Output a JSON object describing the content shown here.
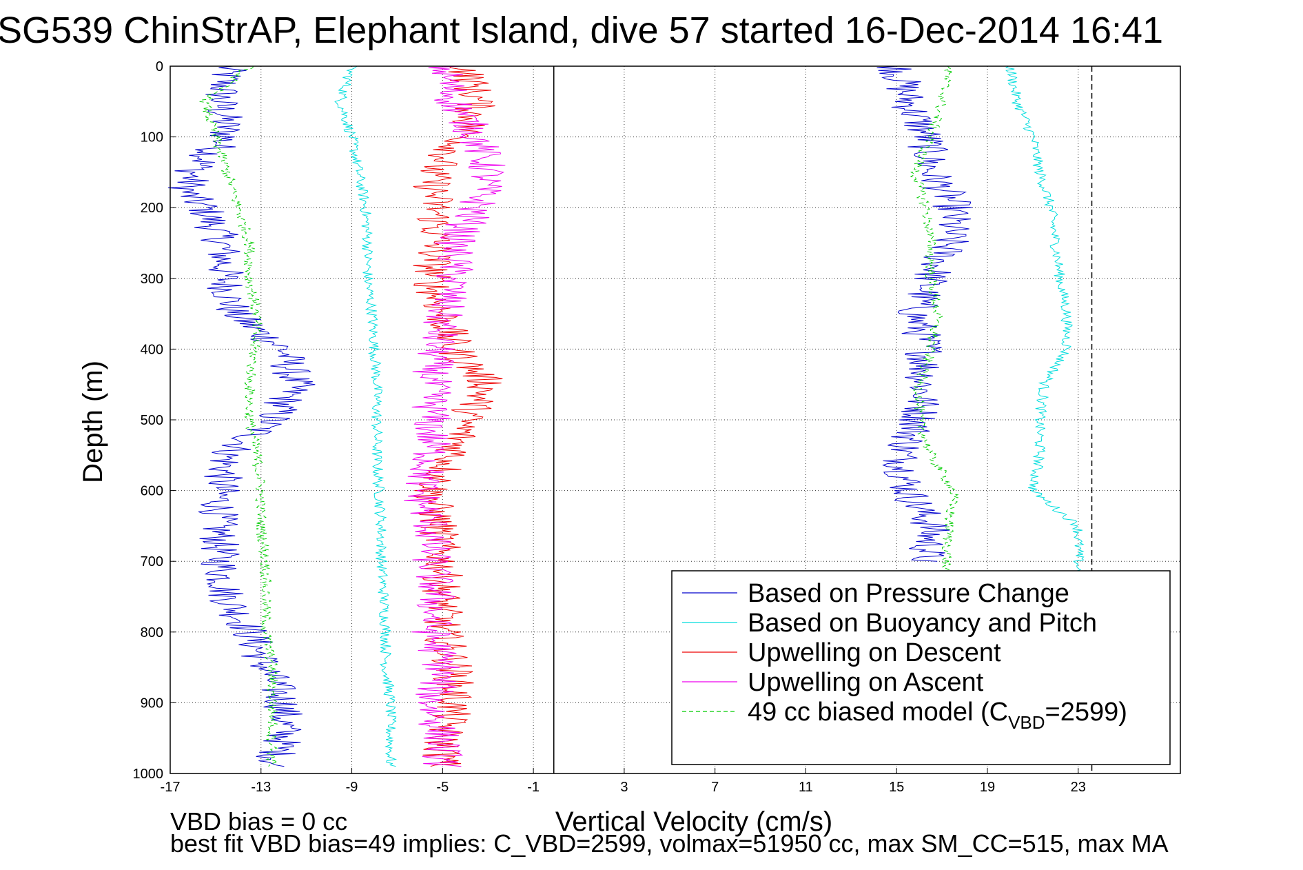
{
  "chart_data": {
    "type": "line",
    "title": "SG539 ChinStrAP, Elephant Island, dive 57 started 16-Dec-2014 16:41",
    "xlabel": "Vertical Velocity (cm/s)",
    "ylabel": "Depth (m)",
    "xlim": [
      -17,
      27.5
    ],
    "ylim": [
      1000,
      0
    ],
    "y_reversed": true,
    "grid": true,
    "legend_position": "lower-right",
    "x_ticks": [
      "-17",
      "-13",
      "-9",
      "-5",
      "-1",
      "3",
      "7",
      "11",
      "15",
      "19",
      "23"
    ],
    "y_ticks": [
      "0",
      "100",
      "200",
      "300",
      "400",
      "500",
      "600",
      "700",
      "800",
      "900",
      "1000"
    ],
    "reference_lines": [
      {
        "x": -0.1,
        "style": "solid",
        "color": "#000000"
      },
      {
        "x": 23.6,
        "style": "dashed",
        "color": "#000000"
      }
    ],
    "series": [
      {
        "name": "Based on Pressure Change",
        "color": "#0000cc",
        "style": "solid",
        "depth": [
          0,
          50,
          100,
          150,
          180,
          200,
          250,
          300,
          350,
          400,
          450,
          500,
          550,
          600,
          650,
          700,
          750,
          800,
          850,
          900,
          950,
          990
        ],
        "descent": [
          -14.5,
          -14.8,
          -14.5,
          -16,
          -16.3,
          -15.5,
          -14.7,
          -14.6,
          -14.2,
          -12,
          -11.5,
          -12.5,
          -14.5,
          -14.8,
          -14.9,
          -14.8,
          -14.5,
          -13.5,
          -12.8,
          -12,
          -12,
          -12.5
        ],
        "ascent": [
          15,
          15.5,
          16.3,
          16.5,
          17.2,
          17.5,
          17.3,
          16.5,
          15.8,
          16.3,
          16.2,
          16,
          15.2,
          15.5,
          16.5,
          16.3
        ]
      },
      {
        "name": "Based on Buoyancy and Pitch",
        "color": "#00dddd",
        "style": "solid",
        "depth": [
          0,
          50,
          100,
          150,
          200,
          250,
          300,
          350,
          400,
          450,
          500,
          550,
          600,
          650,
          700,
          750,
          800,
          850,
          900,
          950,
          990
        ],
        "descent": [
          -9,
          -9.5,
          -9,
          -8.7,
          -8.4,
          -8.3,
          -8.3,
          -8.1,
          -8,
          -7.9,
          -7.9,
          -7.9,
          -7.8,
          -7.7,
          -7.7,
          -7.6,
          -7.5,
          -7.5,
          -7.3,
          -7.3,
          -7.3
        ],
        "ascent": [
          20,
          20.3,
          21,
          21.3,
          21.8,
          22,
          22.2,
          22.5,
          22.5,
          21.5,
          21.3,
          21.3,
          21,
          23,
          23,
          23
        ]
      },
      {
        "name": "Upwelling on Descent",
        "color": "#ee0000",
        "style": "solid",
        "depth": [
          0,
          50,
          100,
          150,
          200,
          250,
          300,
          350,
          400,
          450,
          500,
          550,
          600,
          650,
          700,
          750,
          800,
          850,
          900,
          950,
          990
        ],
        "values": [
          -4,
          -3.5,
          -4,
          -5.5,
          -5.3,
          -5.3,
          -5.5,
          -5,
          -4.5,
          -3,
          -4,
          -4.5,
          -5.5,
          -5.2,
          -5,
          -5,
          -5,
          -4.5,
          -4.5,
          -5,
          -5
        ]
      },
      {
        "name": "Upwelling on Ascent",
        "color": "#ee00ee",
        "style": "solid",
        "depth": [
          0,
          50,
          100,
          150,
          200,
          250,
          300,
          350,
          400,
          450,
          500,
          550,
          600,
          650,
          700,
          750,
          800,
          850,
          900,
          950,
          990
        ],
        "values": [
          -5,
          -4.5,
          -3.5,
          -3,
          -3.5,
          -4.5,
          -4.5,
          -5,
          -5.3,
          -5.5,
          -5.5,
          -5.5,
          -6,
          -5.5,
          -5.5,
          -5.3,
          -5.5,
          -5,
          -5.5,
          -5,
          -5
        ]
      },
      {
        "name": "49 cc biased model (C",
        "name_sub": "VBD",
        "name_suffix": "=2599)",
        "color": "#00cc00",
        "style": "dashed",
        "depth": [
          0,
          50,
          100,
          150,
          200,
          250,
          300,
          350,
          400,
          450,
          500,
          550,
          600,
          650,
          700,
          750,
          800,
          850,
          900,
          950,
          990
        ],
        "descent": [
          -13.5,
          -15.5,
          -15,
          -14.5,
          -14,
          -13.5,
          -13.5,
          -13.2,
          -13.3,
          -13.5,
          -13.5,
          -13.2,
          -13,
          -13,
          -12.8,
          -12.8,
          -12.8,
          -12.5,
          -12.5,
          -12.5,
          -12.5
        ],
        "ascent": [
          17.3,
          17,
          16.5,
          15.8,
          16.3,
          16.5,
          16.5,
          16.8,
          16.5,
          16,
          16,
          16.5,
          17.5,
          17.3,
          17.2,
          17
        ]
      }
    ]
  },
  "footer": {
    "line1": "VBD bias = 0 cc",
    "line2": "best fit VBD bias=49 implies: C_VBD=2599, volmax=51950 cc, max SM_CC=515, max MA"
  }
}
